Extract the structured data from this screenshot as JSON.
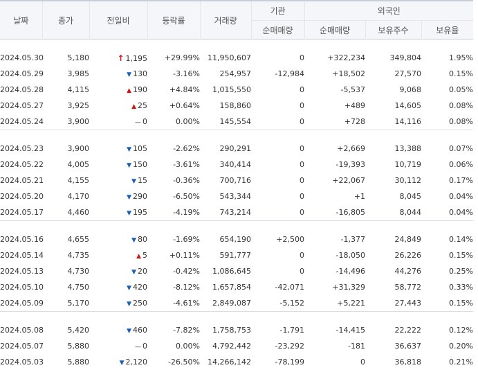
{
  "headers": {
    "date": "날짜",
    "close": "종가",
    "change": "전일비",
    "rate": "등락률",
    "volume": "거래량",
    "institution": "기관",
    "foreign": "외국인",
    "inst_net": "순매매량",
    "foreign_net": "순매매량",
    "foreign_holding": "보유주수",
    "foreign_ratio": "보유율"
  },
  "groups": [
    [
      {
        "date": "2024.05.30",
        "close": "5,180",
        "dir": "limit",
        "change": "1,195",
        "rate": "+29.99%",
        "volume": "11,950,607",
        "inst": "0",
        "foreign": "+322,234",
        "holding": "349,804",
        "ratio": "1.95%"
      },
      {
        "date": "2024.05.29",
        "close": "3,985",
        "dir": "down",
        "change": "130",
        "rate": "-3.16%",
        "volume": "254,957",
        "inst": "-12,984",
        "foreign": "+18,502",
        "holding": "27,570",
        "ratio": "0.15%"
      },
      {
        "date": "2024.05.28",
        "close": "4,115",
        "dir": "up",
        "change": "190",
        "rate": "+4.84%",
        "volume": "1,015,550",
        "inst": "0",
        "foreign": "-5,537",
        "holding": "9,068",
        "ratio": "0.05%"
      },
      {
        "date": "2024.05.27",
        "close": "3,925",
        "dir": "up",
        "change": "25",
        "rate": "+0.64%",
        "volume": "158,860",
        "inst": "0",
        "foreign": "+489",
        "holding": "14,605",
        "ratio": "0.08%"
      },
      {
        "date": "2024.05.24",
        "close": "3,900",
        "dir": "flat",
        "change": "0",
        "rate": "0.00%",
        "volume": "145,554",
        "inst": "0",
        "foreign": "+728",
        "holding": "14,116",
        "ratio": "0.08%"
      }
    ],
    [
      {
        "date": "2024.05.23",
        "close": "3,900",
        "dir": "down",
        "change": "105",
        "rate": "-2.62%",
        "volume": "290,291",
        "inst": "0",
        "foreign": "+2,669",
        "holding": "13,388",
        "ratio": "0.07%"
      },
      {
        "date": "2024.05.22",
        "close": "4,005",
        "dir": "down",
        "change": "150",
        "rate": "-3.61%",
        "volume": "340,414",
        "inst": "0",
        "foreign": "-19,393",
        "holding": "10,719",
        "ratio": "0.06%"
      },
      {
        "date": "2024.05.21",
        "close": "4,155",
        "dir": "down",
        "change": "15",
        "rate": "-0.36%",
        "volume": "700,716",
        "inst": "0",
        "foreign": "+22,067",
        "holding": "30,112",
        "ratio": "0.17%"
      },
      {
        "date": "2024.05.20",
        "close": "4,170",
        "dir": "down",
        "change": "290",
        "rate": "-6.50%",
        "volume": "543,344",
        "inst": "0",
        "foreign": "+1",
        "holding": "8,045",
        "ratio": "0.04%"
      },
      {
        "date": "2024.05.17",
        "close": "4,460",
        "dir": "down",
        "change": "195",
        "rate": "-4.19%",
        "volume": "743,214",
        "inst": "0",
        "foreign": "-16,805",
        "holding": "8,044",
        "ratio": "0.04%"
      }
    ],
    [
      {
        "date": "2024.05.16",
        "close": "4,655",
        "dir": "down",
        "change": "80",
        "rate": "-1.69%",
        "volume": "654,190",
        "inst": "+2,500",
        "foreign": "-1,377",
        "holding": "24,849",
        "ratio": "0.14%"
      },
      {
        "date": "2024.05.14",
        "close": "4,735",
        "dir": "up",
        "change": "5",
        "rate": "+0.11%",
        "volume": "591,777",
        "inst": "0",
        "foreign": "-18,050",
        "holding": "26,226",
        "ratio": "0.15%"
      },
      {
        "date": "2024.05.13",
        "close": "4,730",
        "dir": "down",
        "change": "20",
        "rate": "-0.42%",
        "volume": "1,086,645",
        "inst": "0",
        "foreign": "-14,496",
        "holding": "44,276",
        "ratio": "0.25%"
      },
      {
        "date": "2024.05.10",
        "close": "4,750",
        "dir": "down",
        "change": "420",
        "rate": "-8.12%",
        "volume": "1,657,854",
        "inst": "-42,071",
        "foreign": "+31,329",
        "holding": "58,772",
        "ratio": "0.33%"
      },
      {
        "date": "2024.05.09",
        "close": "5,170",
        "dir": "down",
        "change": "250",
        "rate": "-4.61%",
        "volume": "2,849,087",
        "inst": "-5,152",
        "foreign": "+5,221",
        "holding": "27,443",
        "ratio": "0.15%"
      }
    ],
    [
      {
        "date": "2024.05.08",
        "close": "5,420",
        "dir": "down",
        "change": "460",
        "rate": "-7.82%",
        "volume": "1,758,753",
        "inst": "-1,791",
        "foreign": "-14,415",
        "holding": "22,222",
        "ratio": "0.12%"
      },
      {
        "date": "2024.05.07",
        "close": "5,880",
        "dir": "flat",
        "change": "0",
        "rate": "0.00%",
        "volume": "4,792,442",
        "inst": "-23,292",
        "foreign": "-181",
        "holding": "36,637",
        "ratio": "0.20%"
      },
      {
        "date": "2024.05.03",
        "close": "5,880",
        "dir": "down",
        "change": "2,120",
        "rate": "-26.50%",
        "volume": "14,266,142",
        "inst": "-78,199",
        "foreign": "0",
        "holding": "36,818",
        "ratio": "0.21%"
      }
    ]
  ],
  "colors": {
    "up": "#d11515",
    "down": "#1a5fb4",
    "header_bg": "#f4f6f9"
  }
}
